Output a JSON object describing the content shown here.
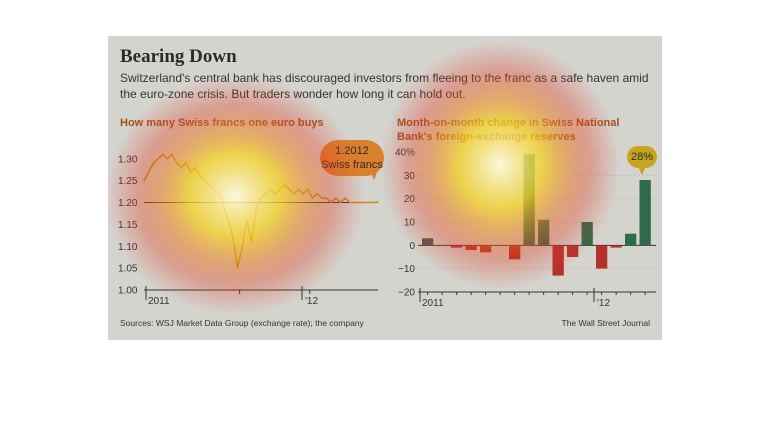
{
  "header": {
    "title": "Bearing Down",
    "subtitle": "Switzerland's central bank has discouraged investors from fleeing to the franc as a safe haven amid the euro-zone crisis. But traders wonder how long it can hold out."
  },
  "footer": {
    "source": "Sources: WSJ Market Data Group (exchange rate); the company",
    "credit": "The Wall Street Journal"
  },
  "colors": {
    "line": "#c9891e",
    "positive": "#2e6b4a",
    "negative": "#b8302a",
    "first_bar": "#555555",
    "heat_core": "#fffbe0",
    "heat_mid": "#f5d21f",
    "heat_edge": "#e23a1d"
  },
  "chart_data": [
    {
      "type": "line",
      "title": "How many Swiss francs one euro buys",
      "x_tick_labels": [
        "2011",
        "'12"
      ],
      "y_tick_labels": [
        "1.30",
        "1.25",
        "1.20",
        "1.15",
        "1.10",
        "1.05",
        "1.00"
      ],
      "ylim": [
        1.0,
        1.32
      ],
      "reference_line": 1.2,
      "annotation": {
        "value": "1.2012",
        "label": "Swiss francs"
      },
      "x": [
        0,
        2,
        4,
        6,
        8,
        10,
        12,
        14,
        16,
        18,
        20,
        22,
        24,
        26,
        28,
        30,
        32,
        34,
        36,
        38,
        40,
        42,
        44,
        46,
        48,
        50,
        52,
        54,
        56,
        58,
        60,
        62,
        64,
        66,
        68,
        70,
        72,
        74,
        76,
        78,
        80,
        82,
        84,
        86,
        88,
        90,
        92,
        94,
        96,
        98,
        100
      ],
      "values": [
        1.25,
        1.27,
        1.29,
        1.3,
        1.31,
        1.3,
        1.31,
        1.29,
        1.28,
        1.29,
        1.27,
        1.28,
        1.26,
        1.25,
        1.24,
        1.23,
        1.22,
        1.19,
        1.16,
        1.12,
        1.05,
        1.1,
        1.16,
        1.11,
        1.19,
        1.21,
        1.22,
        1.23,
        1.22,
        1.23,
        1.24,
        1.23,
        1.22,
        1.23,
        1.22,
        1.23,
        1.21,
        1.22,
        1.21,
        1.21,
        1.2,
        1.21,
        1.2,
        1.21,
        1.2,
        1.2,
        1.2,
        1.2,
        1.2,
        1.2,
        1.2012
      ]
    },
    {
      "type": "bar",
      "title": "Month-on-month change in Swiss National Bank's foreign-exchange reserves",
      "x_tick_labels": [
        "2011",
        "'12"
      ],
      "y_tick_labels": [
        "40%",
        "30",
        "20",
        "10",
        "0",
        "−10",
        "−20"
      ],
      "ylim": [
        -20,
        40
      ],
      "annotation": {
        "label": "28%"
      },
      "values": [
        3,
        0,
        -1,
        -2,
        -3,
        0,
        -6,
        39,
        11,
        -13,
        -5,
        10,
        -10,
        -1,
        5,
        28
      ]
    }
  ]
}
